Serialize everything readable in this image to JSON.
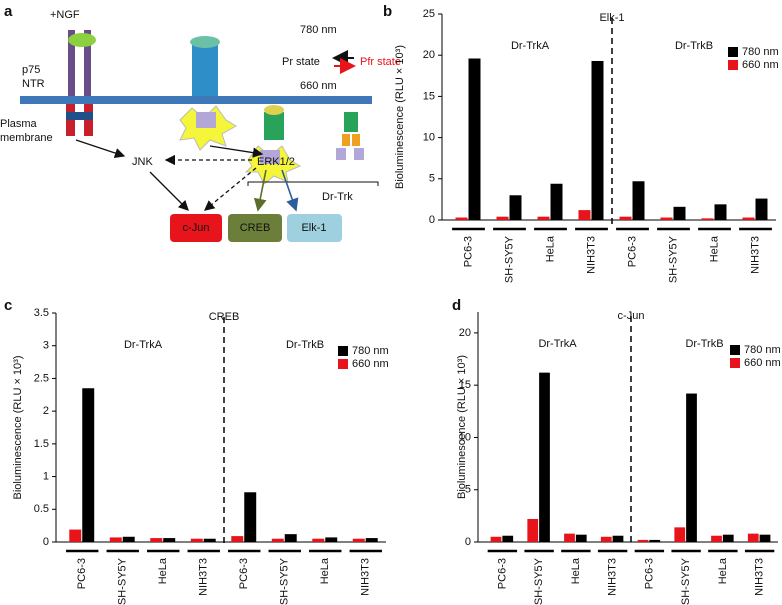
{
  "diagram": {
    "panel": "a",
    "ngf": "+NGF",
    "p75": [
      "p75",
      "NTR"
    ],
    "membrane": [
      "Plasma",
      "membrane"
    ],
    "light": {
      "far_red": "780 nm",
      "red": "660 nm",
      "pr": "Pr state",
      "pfr": "Pfr state"
    },
    "nodes": [
      "JNK",
      "ERK1/2",
      "Dr-Trk"
    ],
    "targets": [
      "c-Jun",
      "CREB",
      "Elk-1"
    ]
  },
  "chart_data": [
    {
      "type": "bar",
      "panel": "b",
      "title": "Elk-1",
      "group_labels": [
        "Dr-TrkA",
        "Dr-TrkB"
      ],
      "ylabel": "Bioluminescence (RLU × 10³)",
      "categories": [
        "PC6-3",
        "SH-SY5Y",
        "HeLa",
        "NIH3T3",
        "PC6-3",
        "SH-SY5Y",
        "HeLa",
        "NIH3T3"
      ],
      "series": [
        {
          "name": "780 nm",
          "color": "#000000",
          "values": [
            19.6,
            3.0,
            4.4,
            19.3,
            4.7,
            1.6,
            1.9,
            2.6
          ]
        },
        {
          "name": "660 nm",
          "color": "#e8141b",
          "values": [
            0.3,
            0.4,
            0.4,
            1.2,
            0.4,
            0.3,
            0.2,
            0.3
          ]
        }
      ],
      "ylim": [
        0,
        25
      ],
      "yticks": [
        0,
        5,
        10,
        15,
        20,
        25
      ],
      "legend": "upper right"
    },
    {
      "type": "bar",
      "panel": "c",
      "title": "CREB",
      "group_labels": [
        "Dr-TrkA",
        "Dr-TrkB"
      ],
      "ylabel": "Bioluminescence (RLU × 10³)",
      "categories": [
        "PC6-3",
        "SH-SY5Y",
        "HeLa",
        "NIH3T3",
        "PC6-3",
        "SH-SY5Y",
        "HeLa",
        "NIH3T3"
      ],
      "series": [
        {
          "name": "780 nm",
          "color": "#000000",
          "values": [
            2.35,
            0.08,
            0.06,
            0.05,
            0.76,
            0.12,
            0.07,
            0.06
          ]
        },
        {
          "name": "660 nm",
          "color": "#e8141b",
          "values": [
            0.19,
            0.07,
            0.06,
            0.05,
            0.09,
            0.05,
            0.05,
            0.05
          ]
        }
      ],
      "ylim": [
        0,
        3.5
      ],
      "yticks": [
        0,
        0.5,
        1,
        1.5,
        2,
        2.5,
        3,
        3.5
      ],
      "legend": "upper right"
    },
    {
      "type": "bar",
      "panel": "d",
      "title": "c-Jun",
      "group_labels": [
        "Dr-TrkA",
        "Dr-TrkB"
      ],
      "ylabel": "Bioluminescence (RLU × 10³)",
      "categories": [
        "PC6-3",
        "SH-SY5Y",
        "HeLa",
        "NIH3T3",
        "PC6-3",
        "SH-SY5Y",
        "HeLa",
        "NIH3T3"
      ],
      "series": [
        {
          "name": "780 nm",
          "color": "#000000",
          "values": [
            0.6,
            16.2,
            0.7,
            0.6,
            0.2,
            14.2,
            0.7,
            0.7
          ]
        },
        {
          "name": "660 nm",
          "color": "#e8141b",
          "values": [
            0.5,
            2.2,
            0.8,
            0.5,
            0.2,
            1.4,
            0.6,
            0.8
          ]
        }
      ],
      "ylim": [
        0,
        22
      ],
      "yticks": [
        0,
        5,
        10,
        15,
        20
      ],
      "legend": "upper right"
    }
  ]
}
